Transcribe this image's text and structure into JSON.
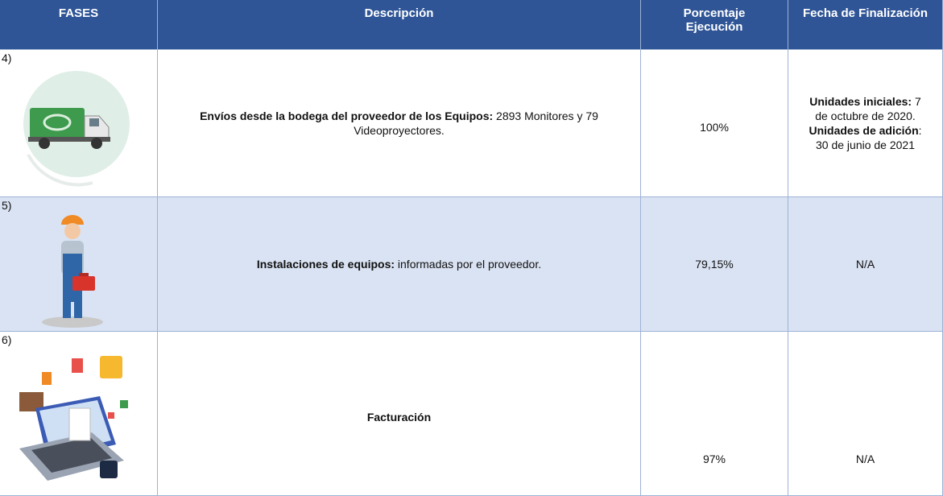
{
  "table": {
    "header": [
      "FASES",
      "Descripción",
      "Porcentaje Ejecución",
      "Fecha de Finalización"
    ],
    "rows": [
      {
        "phase": "4)",
        "description_bold": "Envíos desde la bodega del proveedor de los Equipos:",
        "description_rest": "2893 Monitores y 79 Videoproyectores.",
        "percentage": "100%",
        "date_parts": [
          {
            "bold": "Unidades iniciales:",
            "text": "7 de octubre de 2020."
          },
          {
            "bold": "Unidades de adición",
            "text": ": 30 de junio de 2021"
          }
        ]
      },
      {
        "phase": "5)",
        "description_bold": "Instalaciones de equipos:",
        "description_rest": "informadas por el proveedor.",
        "percentage": "79,15%",
        "date": "N/A"
      },
      {
        "phase": "6)",
        "description_bold": "Facturación",
        "percentage": "97%",
        "date": "N/A"
      }
    ]
  }
}
